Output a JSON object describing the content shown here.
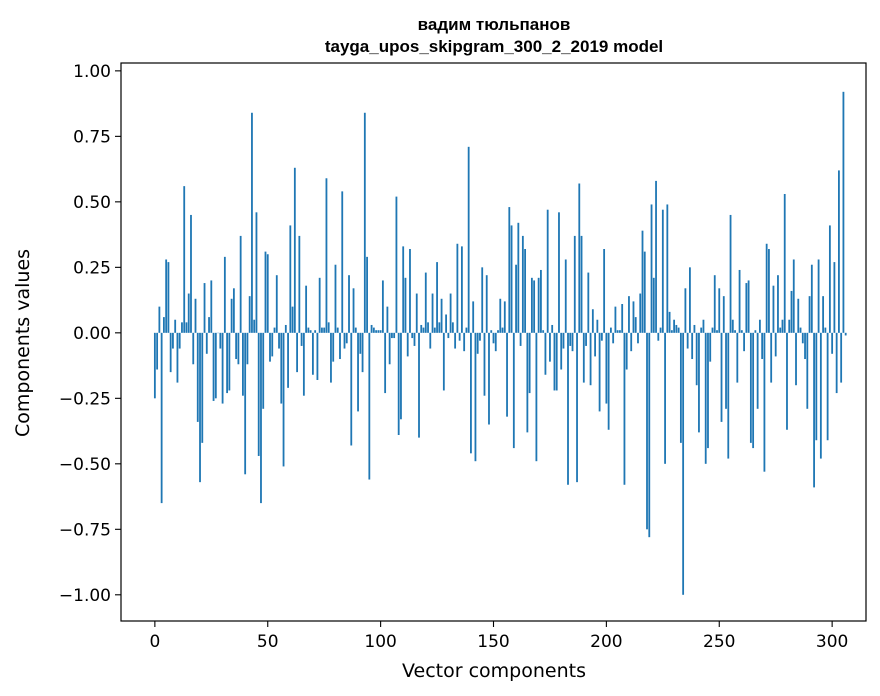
{
  "chart_data": {
    "type": "bar",
    "title": "вадим тюльпанов",
    "subtitle": "tayga_upos_skipgram_300_2_2019 model",
    "xlabel": "Vector components",
    "ylabel": "Components values",
    "xlim": [
      -15,
      315
    ],
    "ylim": [
      -1.1,
      1.03
    ],
    "xticks": [
      0,
      50,
      100,
      150,
      200,
      250,
      300
    ],
    "xtick_labels": [
      "0",
      "50",
      "100",
      "150",
      "200",
      "250",
      "300"
    ],
    "yticks": [
      1.0,
      0.75,
      0.5,
      0.25,
      0.0,
      -0.25,
      -0.5,
      -0.75,
      -1.0
    ],
    "ytick_labels": [
      "1.00",
      "0.75",
      "0.50",
      "0.25",
      "0.00",
      "−0.25",
      "−0.50",
      "−0.75",
      "−1.00"
    ],
    "bar_color": "#1f77b4",
    "grid": false,
    "values": [
      -0.25,
      -0.14,
      0.1,
      -0.65,
      0.06,
      0.28,
      0.27,
      -0.15,
      -0.06,
      0.05,
      -0.19,
      -0.06,
      0.04,
      0.56,
      0.04,
      0.15,
      0.45,
      -0.12,
      0.13,
      -0.34,
      -0.57,
      -0.42,
      0.19,
      -0.08,
      0.06,
      0.2,
      -0.26,
      -0.25,
      0.0,
      -0.06,
      -0.27,
      0.29,
      -0.23,
      -0.22,
      0.13,
      0.17,
      -0.1,
      -0.12,
      0.37,
      -0.24,
      -0.54,
      -0.12,
      0.14,
      0.84,
      0.05,
      0.46,
      -0.47,
      -0.65,
      -0.29,
      0.31,
      0.3,
      -0.11,
      -0.09,
      0.02,
      0.22,
      -0.06,
      -0.27,
      -0.51,
      0.03,
      -0.21,
      0.41,
      0.1,
      0.63,
      -0.15,
      0.37,
      -0.05,
      -0.24,
      0.18,
      0.02,
      0.01,
      -0.16,
      0.01,
      -0.18,
      0.21,
      0.02,
      0.02,
      0.59,
      0.04,
      -0.19,
      -0.11,
      0.26,
      0.02,
      -0.1,
      0.54,
      -0.06,
      -0.04,
      0.22,
      -0.43,
      0.17,
      0.02,
      -0.3,
      -0.08,
      -0.15,
      0.84,
      0.29,
      -0.56,
      0.03,
      0.02,
      0.01,
      0.01,
      0.01,
      0.2,
      -0.23,
      0.1,
      -0.12,
      -0.02,
      -0.02,
      0.52,
      -0.39,
      -0.33,
      0.33,
      0.21,
      -0.09,
      0.32,
      -0.02,
      -0.05,
      0.15,
      -0.4,
      0.03,
      0.02,
      0.23,
      0.04,
      -0.06,
      0.15,
      0.02,
      0.27,
      0.04,
      0.13,
      -0.22,
      0.07,
      -0.02,
      0.15,
      0.04,
      -0.06,
      0.34,
      -0.03,
      0.33,
      -0.07,
      0.02,
      0.71,
      -0.46,
      0.12,
      -0.49,
      -0.08,
      -0.03,
      0.25,
      -0.24,
      0.22,
      -0.35,
      0.01,
      -0.04,
      -0.07,
      0.01,
      0.13,
      0.02,
      0.12,
      -0.32,
      0.48,
      0.41,
      -0.44,
      0.26,
      0.42,
      -0.05,
      0.37,
      0.32,
      -0.38,
      -0.23,
      0.21,
      0.2,
      -0.49,
      0.21,
      0.24,
      0.01,
      -0.16,
      0.47,
      -0.11,
      0.03,
      -0.22,
      -0.22,
      0.46,
      -0.14,
      -0.06,
      0.28,
      -0.58,
      -0.05,
      -0.07,
      0.37,
      -0.57,
      0.57,
      0.37,
      -0.19,
      -0.05,
      0.23,
      -0.2,
      0.09,
      -0.09,
      0.05,
      -0.3,
      -0.03,
      0.32,
      -0.27,
      -0.37,
      0.02,
      -0.04,
      0.1,
      0.01,
      0.01,
      0.11,
      -0.58,
      -0.14,
      0.14,
      -0.07,
      0.12,
      0.06,
      -0.04,
      0.15,
      0.39,
      0.31,
      -0.75,
      -0.78,
      0.49,
      0.21,
      0.58,
      -0.03,
      0.02,
      0.47,
      -0.5,
      0.49,
      0.08,
      0.01,
      0.05,
      0.03,
      0.02,
      -0.42,
      -1.0,
      0.17,
      -0.06,
      0.25,
      -0.1,
      0.03,
      -0.2,
      -0.38,
      0.02,
      0.05,
      -0.5,
      -0.44,
      -0.11,
      0.02,
      0.22,
      0.01,
      0.17,
      -0.34,
      0.14,
      -0.29,
      -0.48,
      0.45,
      0.05,
      0.01,
      -0.19,
      0.24,
      0.01,
      -0.07,
      0.19,
      0.2,
      -0.42,
      -0.44,
      0.01,
      -0.29,
      0.05,
      -0.1,
      -0.53,
      0.34,
      0.32,
      -0.19,
      0.18,
      -0.09,
      0.22,
      0.02,
      0.05,
      0.53,
      -0.37,
      0.05,
      0.16,
      0.28,
      -0.2,
      0.13,
      0.02,
      -0.04,
      -0.1,
      -0.29,
      0.14,
      0.26,
      -0.59,
      -0.41,
      0.28,
      -0.48,
      0.14,
      0.02,
      -0.41,
      0.41,
      -0.08,
      0.27,
      -0.23,
      0.62,
      -0.19,
      0.92,
      -0.01
    ]
  }
}
